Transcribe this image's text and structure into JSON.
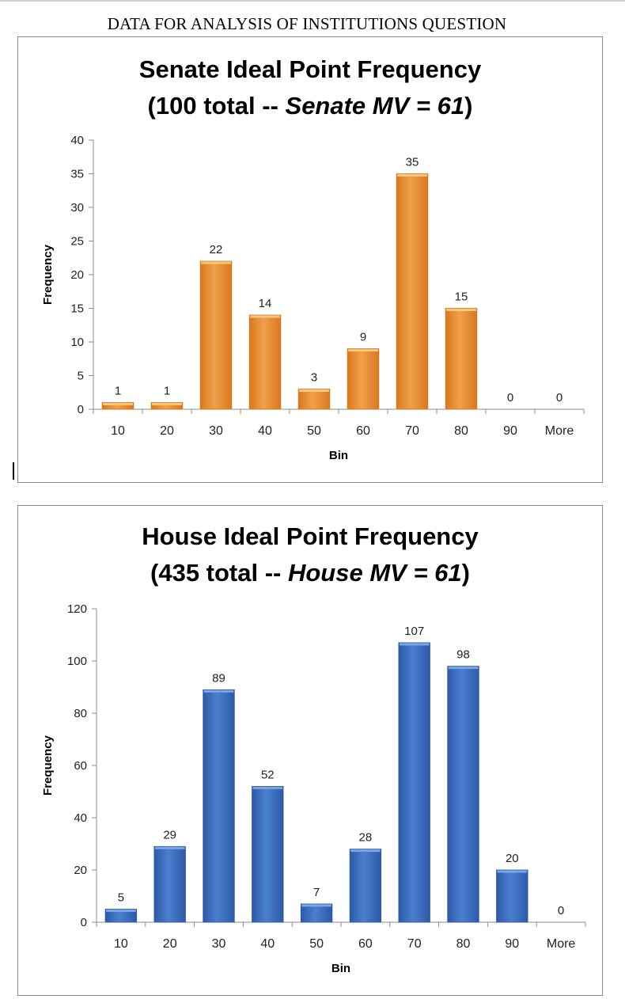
{
  "page_header": "DATA FOR ANALYSIS OF INSTITUTIONS QUESTION",
  "chart_data": [
    {
      "type": "bar",
      "title_line1": "Senate Ideal Point Frequency",
      "title_line2_prefix": "(100 total -- ",
      "title_line2_italic": "Senate MV = 61",
      "title_line2_suffix": ")",
      "xlabel": "Bin",
      "ylabel": "Frequency",
      "categories": [
        "10",
        "20",
        "30",
        "40",
        "50",
        "60",
        "70",
        "80",
        "90",
        "More"
      ],
      "values": [
        1,
        1,
        22,
        14,
        3,
        9,
        35,
        15,
        0,
        0
      ],
      "ylim": [
        0,
        40
      ],
      "yticks": [
        0,
        5,
        10,
        15,
        20,
        25,
        30,
        35,
        40
      ],
      "data_labels": true,
      "grid": false,
      "legend": "none",
      "bar_color": "#f0a04b",
      "bar_highlight": "#fbc77f",
      "bar_shadow": "#d9781f"
    },
    {
      "type": "bar",
      "title_line1": "House Ideal Point Frequency",
      "title_line2_prefix": "(435 total -- ",
      "title_line2_italic": "House MV = 61",
      "title_line2_suffix": ")",
      "xlabel": "Bin",
      "ylabel": "Frequency",
      "categories": [
        "10",
        "20",
        "30",
        "40",
        "50",
        "60",
        "70",
        "80",
        "90",
        "More"
      ],
      "values": [
        5,
        29,
        89,
        52,
        7,
        28,
        107,
        98,
        20,
        0
      ],
      "ylim": [
        0,
        120
      ],
      "yticks": [
        0,
        20,
        40,
        60,
        80,
        100,
        120
      ],
      "data_labels": true,
      "grid": false,
      "legend": "none",
      "bar_color": "#4a7fd0",
      "bar_highlight": "#7aa6e6",
      "bar_shadow": "#2d5aa6"
    }
  ]
}
